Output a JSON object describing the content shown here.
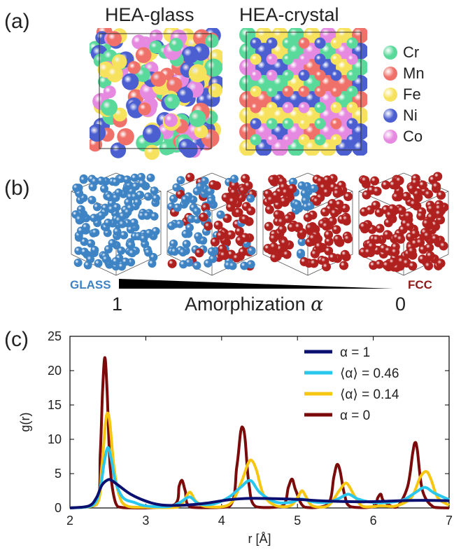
{
  "panel_a": {
    "label": "(a)",
    "title_glass": "HEA-glass",
    "title_crystal": "HEA-crystal",
    "legend": [
      {
        "label": "Cr",
        "color": "#59d99a"
      },
      {
        "label": "Mn",
        "color": "#f0716a"
      },
      {
        "label": "Fe",
        "color": "#f6e25c"
      },
      {
        "label": "Ni",
        "color": "#4b5fd1"
      },
      {
        "label": "Co",
        "color": "#e58ae0"
      }
    ]
  },
  "panel_b": {
    "label": "(b)",
    "glass_word": "GLASS",
    "fcc_word": "FCC",
    "left_value": "1",
    "right_value": "0",
    "axis_label": "Amorphization",
    "axis_symbol": "α",
    "glass_color": "#3e83c3",
    "fcc_color": "#b0201f",
    "cubes": [
      {
        "glass_fraction": 1.0
      },
      {
        "glass_fraction": 0.46
      },
      {
        "glass_fraction": 0.14
      },
      {
        "glass_fraction": 0.0
      }
    ]
  },
  "panel_c": {
    "label": "(c)"
  },
  "chart_data": {
    "type": "line",
    "title": "",
    "xlabel": "r [Å]",
    "ylabel": "g(r)",
    "xlim": [
      2,
      7
    ],
    "ylim": [
      0,
      25
    ],
    "xticks": [
      2,
      3,
      4,
      5,
      6,
      7
    ],
    "yticks": [
      0,
      5,
      10,
      15,
      20,
      25
    ],
    "legend_position": "top-right",
    "series": [
      {
        "name": "α  = 1",
        "color": "#0b1070",
        "x": [
          2.0,
          2.25,
          2.35,
          2.42,
          2.5,
          2.55,
          2.65,
          2.8,
          3.0,
          3.2,
          3.5,
          3.8,
          4.1,
          4.4,
          4.7,
          5.0,
          5.3,
          5.6,
          5.9,
          6.2,
          6.5,
          6.8,
          7.0
        ],
        "y": [
          0,
          0.3,
          1.5,
          3.3,
          4.1,
          4.0,
          3.2,
          2.0,
          1.0,
          0.45,
          0.4,
          0.7,
          1.2,
          1.4,
          1.35,
          1.25,
          1.05,
          0.95,
          0.9,
          1.0,
          1.1,
          1.1,
          1.05
        ]
      },
      {
        "name": "⟨α⟩ = 0.46",
        "color": "#29c6ee",
        "x": [
          2.0,
          2.3,
          2.4,
          2.45,
          2.5,
          2.55,
          2.6,
          2.7,
          2.85,
          3.0,
          3.3,
          3.45,
          3.58,
          3.7,
          3.9,
          4.1,
          4.25,
          4.38,
          4.5,
          4.7,
          4.9,
          5.05,
          5.2,
          5.4,
          5.55,
          5.67,
          5.8,
          6.0,
          6.2,
          6.4,
          6.55,
          6.68,
          6.8,
          7.0
        ],
        "y": [
          0,
          0.4,
          3.0,
          6.5,
          8.8,
          6.8,
          3.8,
          1.5,
          0.8,
          0.3,
          0.2,
          0.8,
          1.6,
          0.6,
          0.6,
          1.6,
          3.0,
          4.0,
          2.3,
          0.9,
          0.8,
          1.3,
          0.9,
          0.8,
          1.4,
          2.0,
          1.3,
          0.8,
          0.8,
          1.2,
          2.2,
          3.0,
          2.2,
          1.2
        ]
      },
      {
        "name": "⟨α⟩ = 0.14",
        "color": "#f7c613",
        "x": [
          2.0,
          2.35,
          2.42,
          2.47,
          2.5,
          2.53,
          2.58,
          2.65,
          2.75,
          3.0,
          3.4,
          3.5,
          3.58,
          3.66,
          3.8,
          4.1,
          4.25,
          4.35,
          4.4,
          4.46,
          4.55,
          4.7,
          4.9,
          5.0,
          5.06,
          5.12,
          5.2,
          5.4,
          5.55,
          5.63,
          5.68,
          5.75,
          5.85,
          6.0,
          6.1,
          6.3,
          6.5,
          6.62,
          6.7,
          6.76,
          6.85,
          7.0
        ],
        "y": [
          0,
          0.5,
          6.0,
          12.5,
          13.8,
          12.0,
          6.0,
          1.8,
          0.3,
          0.1,
          0.1,
          1.0,
          2.3,
          1.0,
          0.2,
          0.5,
          3.5,
          6.5,
          6.9,
          5.5,
          2.0,
          0.4,
          0.3,
          1.5,
          2.5,
          1.5,
          0.3,
          0.3,
          2.5,
          3.6,
          3.2,
          1.8,
          0.3,
          0.2,
          0.3,
          0.3,
          1.5,
          4.5,
          5.3,
          4.2,
          1.5,
          0.4
        ]
      },
      {
        "name": "α  = 0",
        "color": "#7b0a0a",
        "x": [
          2.0,
          2.35,
          2.4,
          2.43,
          2.46,
          2.49,
          2.53,
          2.6,
          2.7,
          3.0,
          3.38,
          3.44,
          3.48,
          3.52,
          3.6,
          4.1,
          4.2,
          4.25,
          4.28,
          4.31,
          4.36,
          4.45,
          4.8,
          4.88,
          4.93,
          4.98,
          5.1,
          5.4,
          5.48,
          5.52,
          5.56,
          5.62,
          5.7,
          6.0,
          6.06,
          6.1,
          6.14,
          6.3,
          6.45,
          6.52,
          6.55,
          6.58,
          6.65,
          6.8,
          7.0
        ],
        "y": [
          0,
          0.5,
          8.0,
          17.0,
          21.9,
          17.0,
          6.0,
          0.8,
          0.05,
          0,
          0.5,
          3.2,
          4.0,
          2.5,
          0.1,
          0.2,
          6.0,
          11.0,
          11.7,
          10.0,
          3.5,
          0.2,
          0.3,
          3.0,
          4.2,
          2.5,
          0.1,
          0.5,
          4.5,
          6.3,
          5.5,
          2.0,
          0.2,
          0.2,
          1.5,
          2.0,
          1.0,
          0.1,
          3.0,
          8.0,
          9.5,
          8.5,
          2.5,
          0.1,
          0
        ]
      }
    ]
  }
}
